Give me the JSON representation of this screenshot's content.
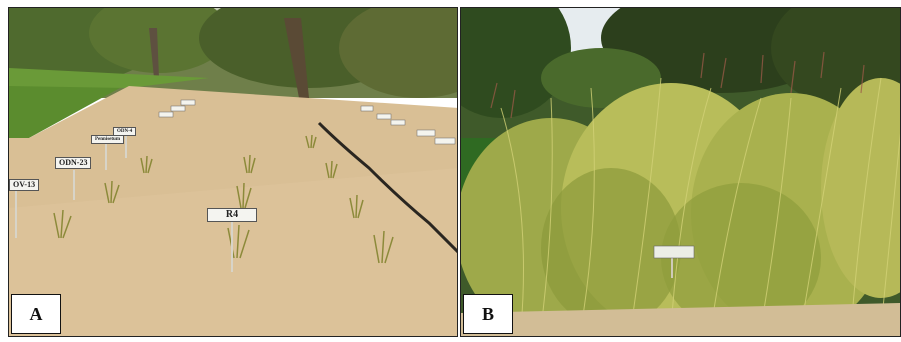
{
  "panels": [
    {
      "label": "A",
      "plot_tags": [
        "ODN-23",
        "R4",
        "OV-13",
        "Pennisetum",
        "ODN-4"
      ]
    },
    {
      "label": "B"
    }
  ]
}
